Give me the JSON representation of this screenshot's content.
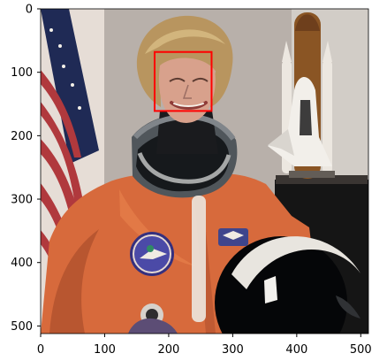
{
  "figure": {
    "x_ticks": [
      "0",
      "100",
      "200",
      "300",
      "400",
      "500"
    ],
    "y_ticks": [
      "0",
      "100",
      "200",
      "300",
      "400",
      "500"
    ],
    "image_extent": {
      "x": [
        0,
        512
      ],
      "y": [
        0,
        512
      ]
    },
    "detection_box": {
      "color": "#ff0000",
      "x_range": [
        178,
        267
      ],
      "y_range": [
        68,
        161
      ]
    }
  },
  "scene": {
    "colors": {
      "background": "#b8b0aa",
      "flag_red": "#b0393d",
      "flag_white": "#e6ddd6",
      "flag_blue": "#1f2a55",
      "suit_orange": "#d76a3c",
      "suit_shadow": "#a84b2a",
      "helmet": "#050608",
      "hair": "#b8955f",
      "skin": "#d8a18c",
      "shuttle_white": "#ece7e0",
      "rocket_brown": "#8a5524"
    }
  }
}
